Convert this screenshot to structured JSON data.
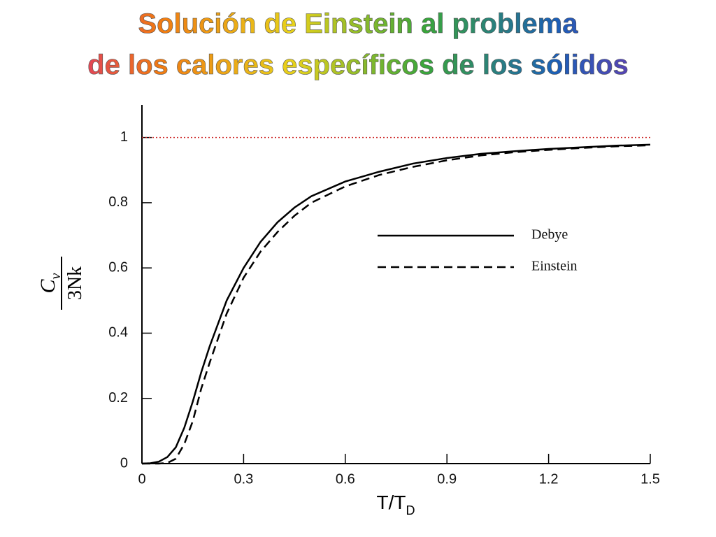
{
  "chart_data": {
    "type": "line",
    "title": [
      "Solución de Einstein al problema",
      "de los calores específicos de los sólidos"
    ],
    "title_colors": [
      "#d81b8c",
      "#f07a12",
      "#e8d21a",
      "#3aa63a",
      "#1b5fb8",
      "#8a2cb0"
    ],
    "xlabel": {
      "main": "T/T",
      "sub": "D"
    },
    "ylabel": {
      "numerator": "C",
      "numerator_sub": "v",
      "denominator": "3Nk"
    },
    "x": [
      0,
      0.025,
      0.05,
      0.075,
      0.1,
      0.125,
      0.15,
      0.175,
      0.2,
      0.25,
      0.3,
      0.35,
      0.4,
      0.45,
      0.5,
      0.6,
      0.7,
      0.8,
      0.9,
      1.0,
      1.1,
      1.2,
      1.3,
      1.4,
      1.5
    ],
    "series": [
      {
        "name": "Debye",
        "color": "#000000",
        "dash": "solid",
        "values": [
          0,
          0.001,
          0.006,
          0.02,
          0.05,
          0.11,
          0.19,
          0.28,
          0.36,
          0.5,
          0.6,
          0.68,
          0.74,
          0.785,
          0.82,
          0.865,
          0.895,
          0.92,
          0.937,
          0.95,
          0.958,
          0.965,
          0.97,
          0.975,
          0.978
        ]
      },
      {
        "name": "Einstein",
        "color": "#000000",
        "dash": "dashed",
        "values": [
          0,
          0,
          0,
          0.002,
          0.015,
          0.06,
          0.13,
          0.23,
          0.31,
          0.46,
          0.57,
          0.65,
          0.71,
          0.76,
          0.8,
          0.85,
          0.885,
          0.91,
          0.93,
          0.945,
          0.955,
          0.962,
          0.968,
          0.973,
          0.976
        ]
      }
    ],
    "xlim": [
      0,
      1.5
    ],
    "xticks": [
      0,
      0.3,
      0.6,
      0.9,
      1.2,
      1.5
    ],
    "ylim": [
      0,
      1.1
    ],
    "yticks": [
      0,
      0.2,
      0.4,
      0.6,
      0.8,
      1
    ],
    "hline": {
      "value": 1,
      "color": "#cc2222"
    },
    "legend": "right"
  }
}
